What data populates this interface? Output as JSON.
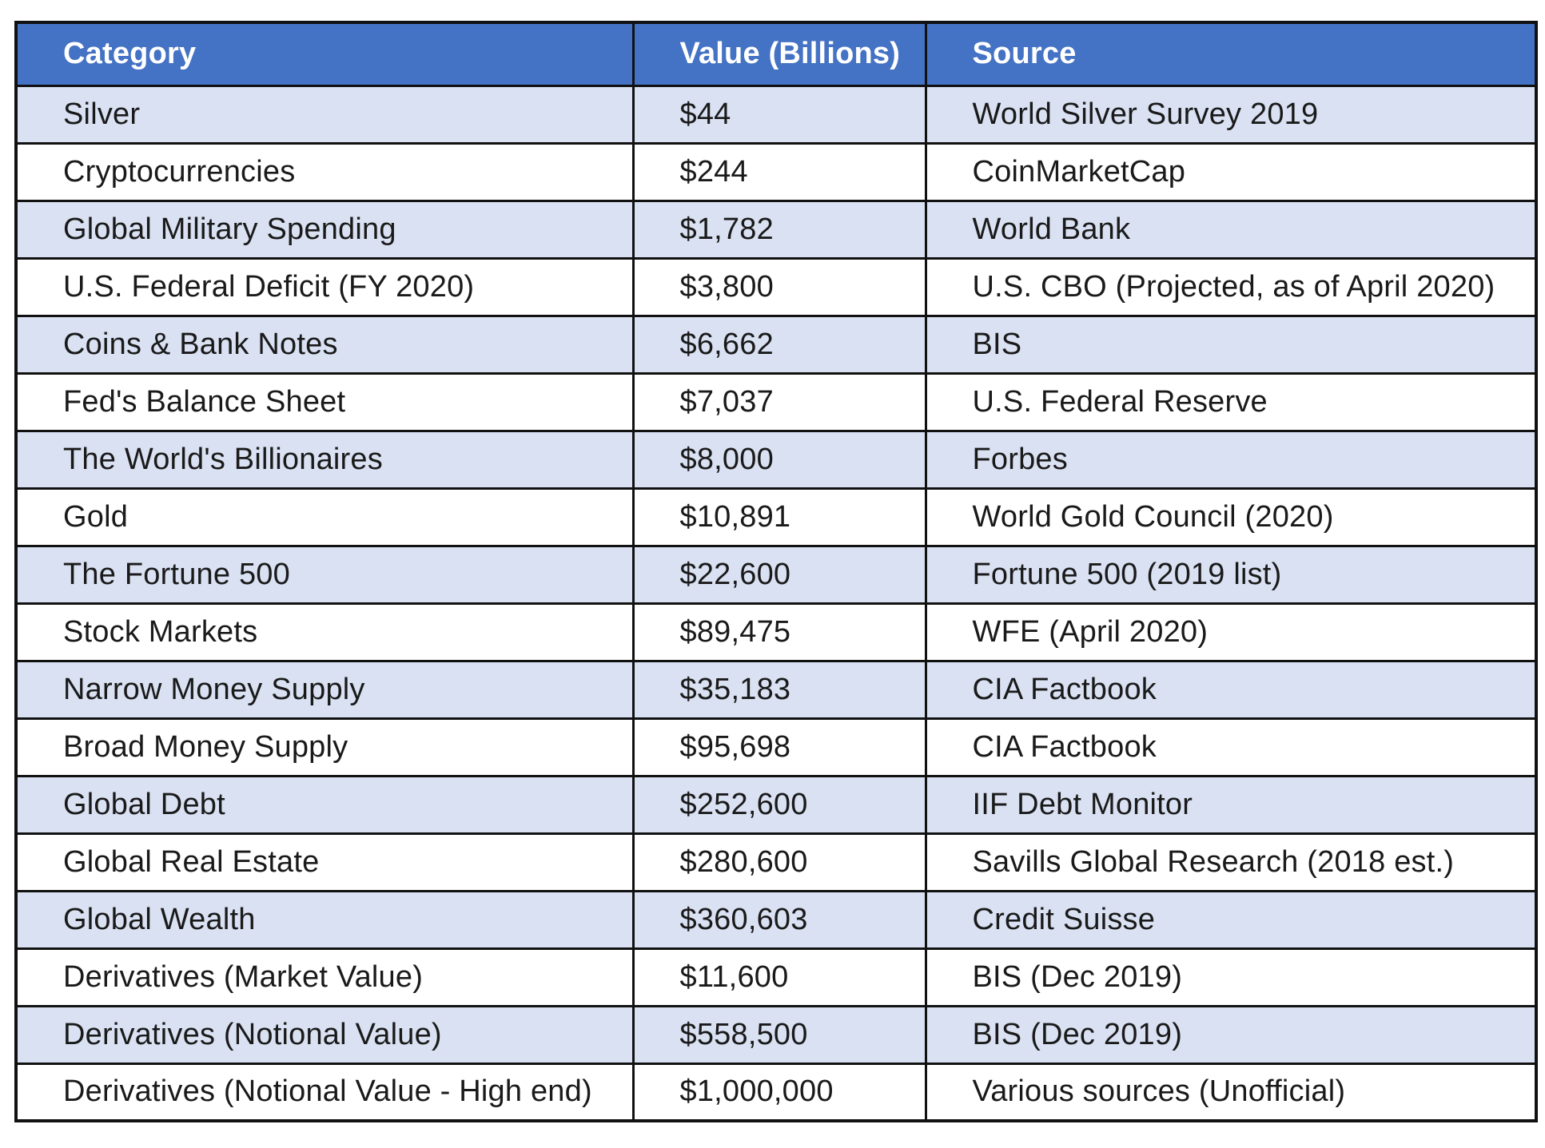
{
  "table": {
    "headers": [
      "Category",
      "Value (Billions)",
      "Source"
    ],
    "rows": [
      [
        "Silver",
        "$44",
        "World Silver Survey 2019"
      ],
      [
        "Cryptocurrencies",
        "$244",
        "CoinMarketCap"
      ],
      [
        "Global Military Spending",
        "$1,782",
        "World Bank"
      ],
      [
        "U.S. Federal Deficit (FY 2020)",
        "$3,800",
        "U.S. CBO (Projected, as of April 2020)"
      ],
      [
        "Coins & Bank Notes",
        "$6,662",
        "BIS"
      ],
      [
        "Fed's Balance Sheet",
        "$7,037",
        "U.S. Federal Reserve"
      ],
      [
        "The World's Billionaires",
        "$8,000",
        "Forbes"
      ],
      [
        "Gold",
        "$10,891",
        "World Gold Council (2020)"
      ],
      [
        "The Fortune 500",
        "$22,600",
        "Fortune 500 (2019 list)"
      ],
      [
        "Stock Markets",
        "$89,475",
        "WFE (April 2020)"
      ],
      [
        "Narrow Money Supply",
        "$35,183",
        "CIA Factbook"
      ],
      [
        "Broad Money Supply",
        "$95,698",
        "CIA Factbook"
      ],
      [
        "Global Debt",
        "$252,600",
        "IIF Debt Monitor"
      ],
      [
        "Global Real Estate",
        "$280,600",
        "Savills Global Research (2018 est.)"
      ],
      [
        "Global Wealth",
        "$360,603",
        "Credit Suisse"
      ],
      [
        "Derivatives (Market Value)",
        "$11,600",
        "BIS (Dec 2019)"
      ],
      [
        "Derivatives (Notional Value)",
        "$558,500",
        "BIS (Dec 2019)"
      ],
      [
        "Derivatives (Notional Value - High end)",
        "$1,000,000",
        "Various sources (Unofficial)"
      ]
    ]
  },
  "colors": {
    "header_background": "#4472c4",
    "header_text": "#ffffff",
    "band_background": "#d9e1f2",
    "row_background": "#ffffff",
    "border": "#111111"
  }
}
